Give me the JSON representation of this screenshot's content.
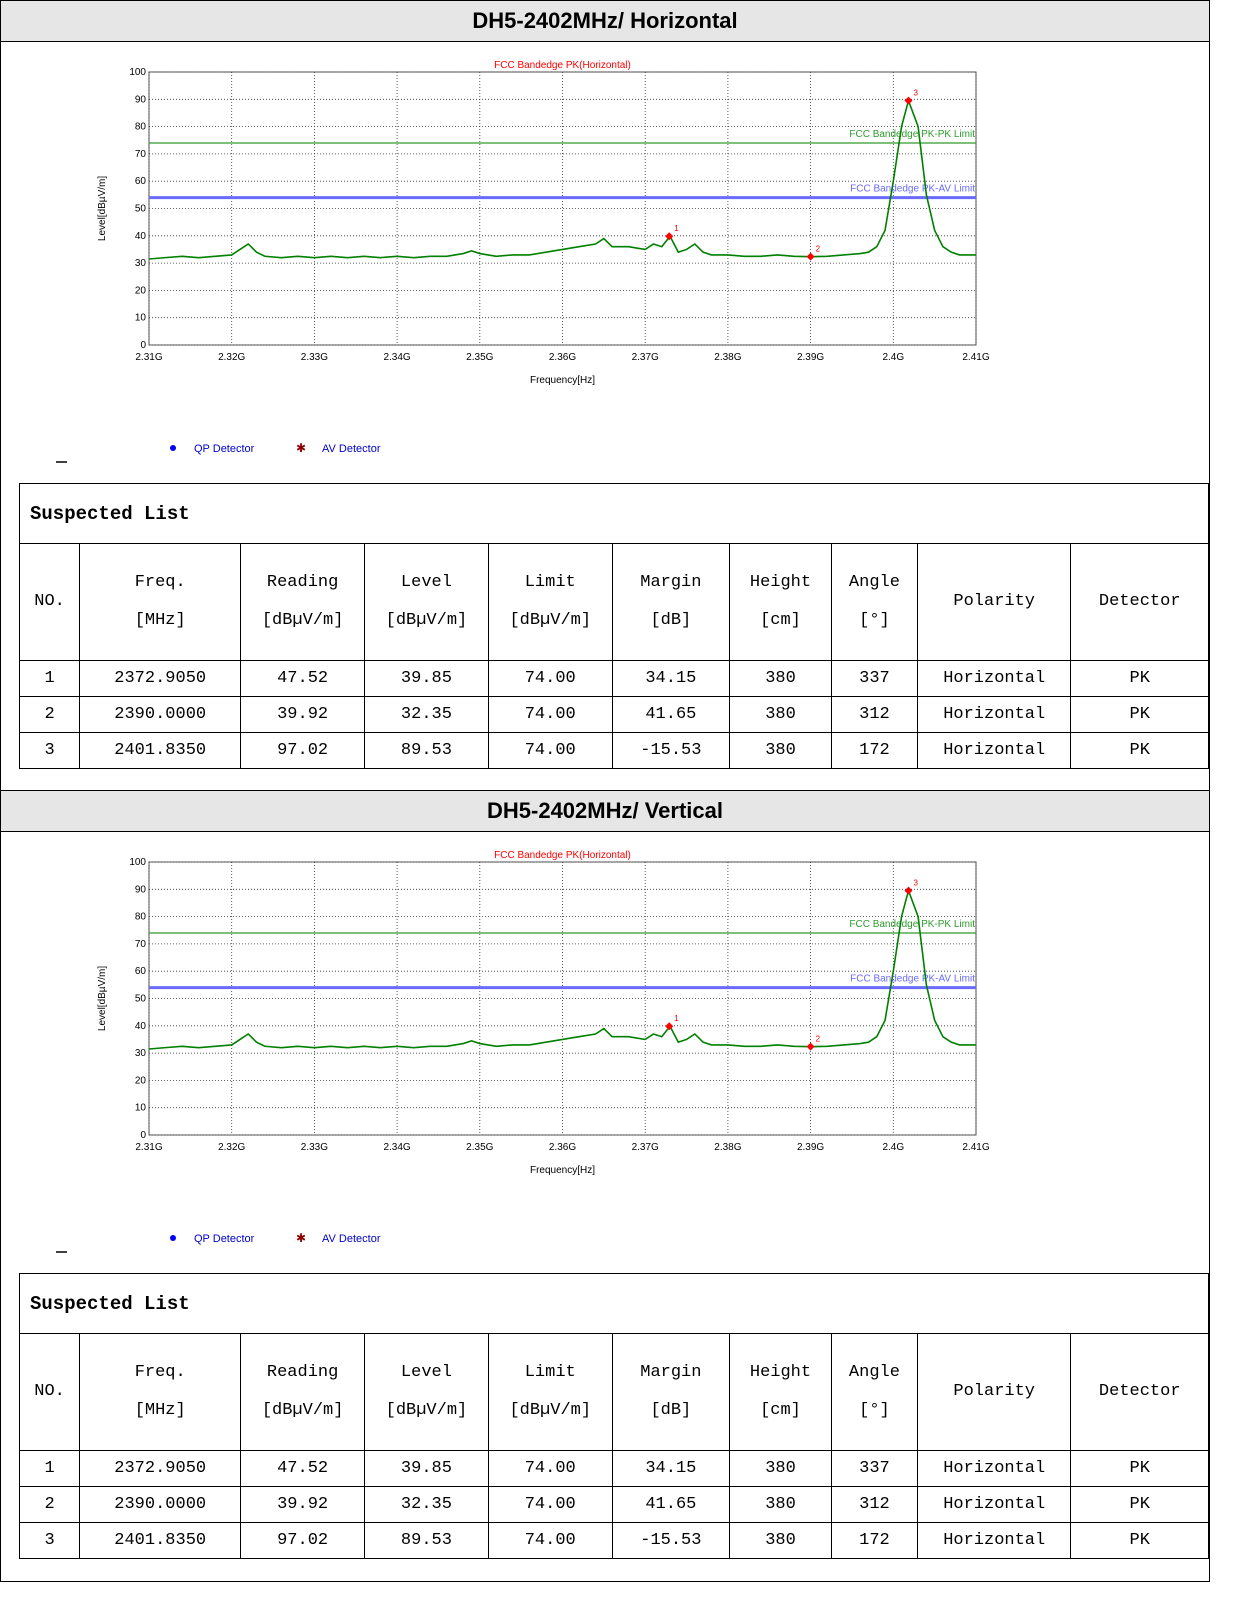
{
  "sections": [
    {
      "title": "DH5-2402MHz/ Horizontal",
      "legend": [
        {
          "name": "QP Detector",
          "color": "#0000ff",
          "marker": "dot"
        },
        {
          "name": "AV Detector",
          "color": "#8b0000",
          "marker": "star"
        }
      ],
      "table": {
        "title": "Suspected List",
        "header": [
          [
            "NO."
          ],
          [
            "Freq.",
            "[MHz]"
          ],
          [
            "Reading",
            "[dBµV/m]"
          ],
          [
            "Level",
            "[dBµV/m]"
          ],
          [
            "Limit",
            "[dBµV/m]"
          ],
          [
            "Margin",
            "[dB]"
          ],
          [
            "Height",
            "[cm]"
          ],
          [
            "Angle",
            "[°]"
          ],
          [
            "Polarity"
          ],
          [
            "Detector"
          ]
        ],
        "rows": [
          [
            "1",
            "2372.9050",
            "47.52",
            "39.85",
            "74.00",
            "34.15",
            "380",
            "337",
            "Horizontal",
            "PK"
          ],
          [
            "2",
            "2390.0000",
            "39.92",
            "32.35",
            "74.00",
            "41.65",
            "380",
            "312",
            "Horizontal",
            "PK"
          ],
          [
            "3",
            "2401.8350",
            "97.02",
            "89.53",
            "74.00",
            "-15.53",
            "380",
            "172",
            "Horizontal",
            "PK"
          ]
        ]
      }
    },
    {
      "title": "DH5-2402MHz/ Vertical",
      "legend": [
        {
          "name": "QP Detector",
          "color": "#0000ff",
          "marker": "dot"
        },
        {
          "name": "AV Detector",
          "color": "#8b0000",
          "marker": "star"
        }
      ],
      "table": {
        "title": "Suspected List",
        "header": [
          [
            "NO."
          ],
          [
            "Freq.",
            "[MHz]"
          ],
          [
            "Reading",
            "[dBµV/m]"
          ],
          [
            "Level",
            "[dBµV/m]"
          ],
          [
            "Limit",
            "[dBµV/m]"
          ],
          [
            "Margin",
            "[dB]"
          ],
          [
            "Height",
            "[cm]"
          ],
          [
            "Angle",
            "[°]"
          ],
          [
            "Polarity"
          ],
          [
            "Detector"
          ]
        ],
        "rows": [
          [
            "1",
            "2372.9050",
            "47.52",
            "39.85",
            "74.00",
            "34.15",
            "380",
            "337",
            "Horizontal",
            "PK"
          ],
          [
            "2",
            "2390.0000",
            "39.92",
            "32.35",
            "74.00",
            "41.65",
            "380",
            "312",
            "Horizontal",
            "PK"
          ],
          [
            "3",
            "2401.8350",
            "97.02",
            "89.53",
            "74.00",
            "-15.53",
            "380",
            "172",
            "Horizontal",
            "PK"
          ]
        ]
      }
    }
  ],
  "chart_data": [
    {
      "type": "line",
      "title": "FCC Bandedge PK(Horizontal)",
      "xlabel": "Frequency[Hz]",
      "ylabel": "Level[dBµV/m]",
      "grid": true,
      "xlim": [
        2310000000,
        2410000000
      ],
      "xticks": [
        {
          "value": 2310000000,
          "label": "2.31G"
        },
        {
          "value": 2320000000,
          "label": "2.32G"
        },
        {
          "value": 2330000000,
          "label": "2.33G"
        },
        {
          "value": 2340000000,
          "label": "2.34G"
        },
        {
          "value": 2350000000,
          "label": "2.35G"
        },
        {
          "value": 2360000000,
          "label": "2.36G"
        },
        {
          "value": 2370000000,
          "label": "2.37G"
        },
        {
          "value": 2380000000,
          "label": "2.38G"
        },
        {
          "value": 2390000000,
          "label": "2.39G"
        },
        {
          "value": 2400000000,
          "label": "2.4G"
        },
        {
          "value": 2410000000,
          "label": "2.41G"
        }
      ],
      "ylim": [
        0,
        100
      ],
      "yticks": [
        0,
        10,
        20,
        30,
        40,
        50,
        60,
        70,
        80,
        90,
        100
      ],
      "x": [
        2310000000,
        2312000000,
        2314000000,
        2316000000,
        2318000000,
        2320000000,
        2321000000,
        2322000000,
        2323000000,
        2324000000,
        2326000000,
        2328000000,
        2330000000,
        2332000000,
        2334000000,
        2336000000,
        2338000000,
        2340000000,
        2342000000,
        2344000000,
        2346000000,
        2348000000,
        2349000000,
        2350000000,
        2352000000,
        2354000000,
        2356000000,
        2358000000,
        2360000000,
        2362000000,
        2364000000,
        2365000000,
        2366000000,
        2368000000,
        2370000000,
        2371000000,
        2372000000,
        2373000000,
        2374000000,
        2375000000,
        2376000000,
        2377000000,
        2378000000,
        2380000000,
        2382000000,
        2384000000,
        2386000000,
        2388000000,
        2390000000,
        2392000000,
        2394000000,
        2396000000,
        2397000000,
        2398000000,
        2399000000,
        2400000000,
        2401000000,
        2401835000,
        2403000000,
        2404000000,
        2405000000,
        2406000000,
        2407000000,
        2408000000,
        2410000000
      ],
      "series": [
        {
          "color": "#008000",
          "values": [
            31.5,
            32,
            32.5,
            32,
            32.5,
            33,
            35,
            37,
            34,
            32.5,
            32,
            32.5,
            32,
            32.5,
            32,
            32.5,
            32,
            32.5,
            32,
            32.5,
            32.5,
            33.5,
            34.5,
            33.5,
            32.5,
            33,
            33,
            34,
            35,
            36,
            37,
            39,
            36,
            36,
            35,
            37,
            36,
            39.85,
            34,
            35,
            37,
            34,
            33,
            33,
            32.5,
            32.5,
            33,
            32.5,
            32.35,
            32.5,
            33,
            33.5,
            34,
            36,
            42,
            60,
            80,
            89.53,
            80,
            55,
            42,
            36,
            34,
            33,
            33
          ]
        }
      ],
      "limits": [
        {
          "name": "FCC Bandedge PK-PK Limit",
          "value": 74,
          "color": "#2e9b2e"
        },
        {
          "name": "FCC Bandedge PK-AV Limit",
          "value": 54,
          "color": "#6a6aff"
        }
      ],
      "markers": {
        "color": "#ff0000",
        "labels": [
          "1",
          "2",
          "3"
        ],
        "x": [
          2372905000,
          2390000000,
          2401835000
        ],
        "values": [
          39.85,
          32.35,
          89.53
        ]
      }
    },
    {
      "type": "line",
      "title": "FCC Bandedge PK(Horizontal)",
      "xlabel": "Frequency[Hz]",
      "ylabel": "Level[dBµV/m]",
      "grid": true,
      "xlim": [
        2310000000,
        2410000000
      ],
      "xticks": [
        {
          "value": 2310000000,
          "label": "2.31G"
        },
        {
          "value": 2320000000,
          "label": "2.32G"
        },
        {
          "value": 2330000000,
          "label": "2.33G"
        },
        {
          "value": 2340000000,
          "label": "2.34G"
        },
        {
          "value": 2350000000,
          "label": "2.35G"
        },
        {
          "value": 2360000000,
          "label": "2.36G"
        },
        {
          "value": 2370000000,
          "label": "2.37G"
        },
        {
          "value": 2380000000,
          "label": "2.38G"
        },
        {
          "value": 2390000000,
          "label": "2.39G"
        },
        {
          "value": 2400000000,
          "label": "2.4G"
        },
        {
          "value": 2410000000,
          "label": "2.41G"
        }
      ],
      "ylim": [
        0,
        100
      ],
      "yticks": [
        0,
        10,
        20,
        30,
        40,
        50,
        60,
        70,
        80,
        90,
        100
      ],
      "x": [
        2310000000,
        2312000000,
        2314000000,
        2316000000,
        2318000000,
        2320000000,
        2321000000,
        2322000000,
        2323000000,
        2324000000,
        2326000000,
        2328000000,
        2330000000,
        2332000000,
        2334000000,
        2336000000,
        2338000000,
        2340000000,
        2342000000,
        2344000000,
        2346000000,
        2348000000,
        2349000000,
        2350000000,
        2352000000,
        2354000000,
        2356000000,
        2358000000,
        2360000000,
        2362000000,
        2364000000,
        2365000000,
        2366000000,
        2368000000,
        2370000000,
        2371000000,
        2372000000,
        2373000000,
        2374000000,
        2375000000,
        2376000000,
        2377000000,
        2378000000,
        2380000000,
        2382000000,
        2384000000,
        2386000000,
        2388000000,
        2390000000,
        2392000000,
        2394000000,
        2396000000,
        2397000000,
        2398000000,
        2399000000,
        2400000000,
        2401000000,
        2401835000,
        2403000000,
        2404000000,
        2405000000,
        2406000000,
        2407000000,
        2408000000,
        2410000000
      ],
      "series": [
        {
          "color": "#008000",
          "values": [
            31.5,
            32,
            32.5,
            32,
            32.5,
            33,
            35,
            37,
            34,
            32.5,
            32,
            32.5,
            32,
            32.5,
            32,
            32.5,
            32,
            32.5,
            32,
            32.5,
            32.5,
            33.5,
            34.5,
            33.5,
            32.5,
            33,
            33,
            34,
            35,
            36,
            37,
            39,
            36,
            36,
            35,
            37,
            36,
            39.85,
            34,
            35,
            37,
            34,
            33,
            33,
            32.5,
            32.5,
            33,
            32.5,
            32.35,
            32.5,
            33,
            33.5,
            34,
            36,
            42,
            60,
            80,
            89.53,
            80,
            55,
            42,
            36,
            34,
            33,
            33
          ]
        }
      ],
      "limits": [
        {
          "name": "FCC Bandedge PK-PK Limit",
          "value": 74,
          "color": "#2e9b2e"
        },
        {
          "name": "FCC Bandedge PK-AV Limit",
          "value": 54,
          "color": "#6a6aff"
        }
      ],
      "markers": {
        "color": "#ff0000",
        "labels": [
          "1",
          "2",
          "3"
        ],
        "x": [
          2372905000,
          2390000000,
          2401835000
        ],
        "values": [
          39.85,
          32.35,
          89.53
        ]
      }
    }
  ]
}
